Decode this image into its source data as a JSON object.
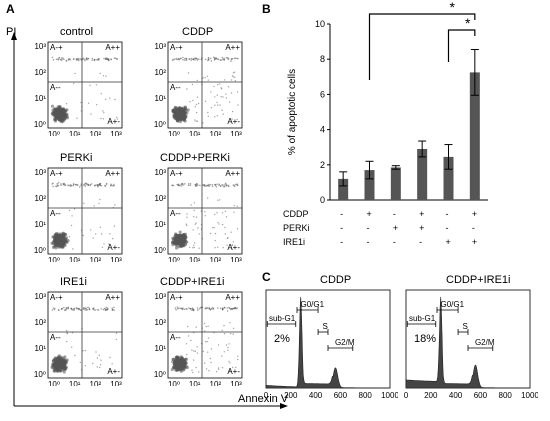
{
  "panelA": {
    "letter": "A",
    "y_axis_label": "PI",
    "x_axis_label": "Annexin V",
    "plots": [
      {
        "title": "control"
      },
      {
        "title": "CDDP"
      },
      {
        "title": "PERKi"
      },
      {
        "title": "CDDP+PERKi"
      },
      {
        "title": "IRE1i"
      },
      {
        "title": "CDDP+IRE1i"
      }
    ],
    "quadrants": {
      "ul": "A-+",
      "ur": "A++",
      "ll": "A--",
      "lr": "A+-"
    },
    "ticks_y": [
      "10³",
      "10²",
      "10¹",
      "10⁰"
    ],
    "ticks_x": [
      "10⁰",
      "10¹",
      "10²",
      "10³"
    ]
  },
  "chart_data": [
    {
      "type": "bar",
      "panel": "B",
      "ylabel": "% of apoptotic cells",
      "ylim": [
        0,
        10
      ],
      "yticks": [
        0,
        2,
        4,
        6,
        8,
        10
      ],
      "values": [
        1.2,
        1.7,
        1.85,
        2.9,
        2.45,
        7.25
      ],
      "errors": [
        0.4,
        0.5,
        0.1,
        0.45,
        0.7,
        1.3
      ],
      "treatments": [
        {
          "label": "CDDP",
          "signs": [
            "-",
            "+",
            "-",
            "+",
            "-",
            "+"
          ]
        },
        {
          "label": "PERKi",
          "signs": [
            "-",
            "-",
            "+",
            "+",
            "-",
            "-"
          ]
        },
        {
          "label": "IRE1i",
          "signs": [
            "-",
            "-",
            "-",
            "-",
            "+",
            "+"
          ]
        }
      ],
      "significance": [
        {
          "from": 1,
          "to": 5,
          "label": "*"
        },
        {
          "from": 4,
          "to": 5,
          "label": "*"
        }
      ],
      "bar_color": "#555555"
    },
    {
      "type": "line",
      "panel": "C",
      "histograms": [
        {
          "title": "CDDP",
          "gates": [
            "sub-G1",
            "G0/G1",
            "S",
            "G2/M"
          ],
          "percent": "2%",
          "xticks": [
            0,
            200,
            400,
            600,
            800,
            1000
          ],
          "peaks": [
            {
              "x": 280,
              "height": 1.0
            },
            {
              "x": 560,
              "height": 0.22
            }
          ]
        },
        {
          "title": "CDDP+IRE1i",
          "gates": [
            "sub-G1",
            "G0/G1",
            "S",
            "G2/M"
          ],
          "percent": "18%",
          "xticks": [
            0,
            200,
            400,
            600,
            800,
            1000
          ],
          "peaks": [
            {
              "x": 280,
              "height": 1.0
            },
            {
              "x": 560,
              "height": 0.25
            }
          ]
        }
      ]
    }
  ]
}
